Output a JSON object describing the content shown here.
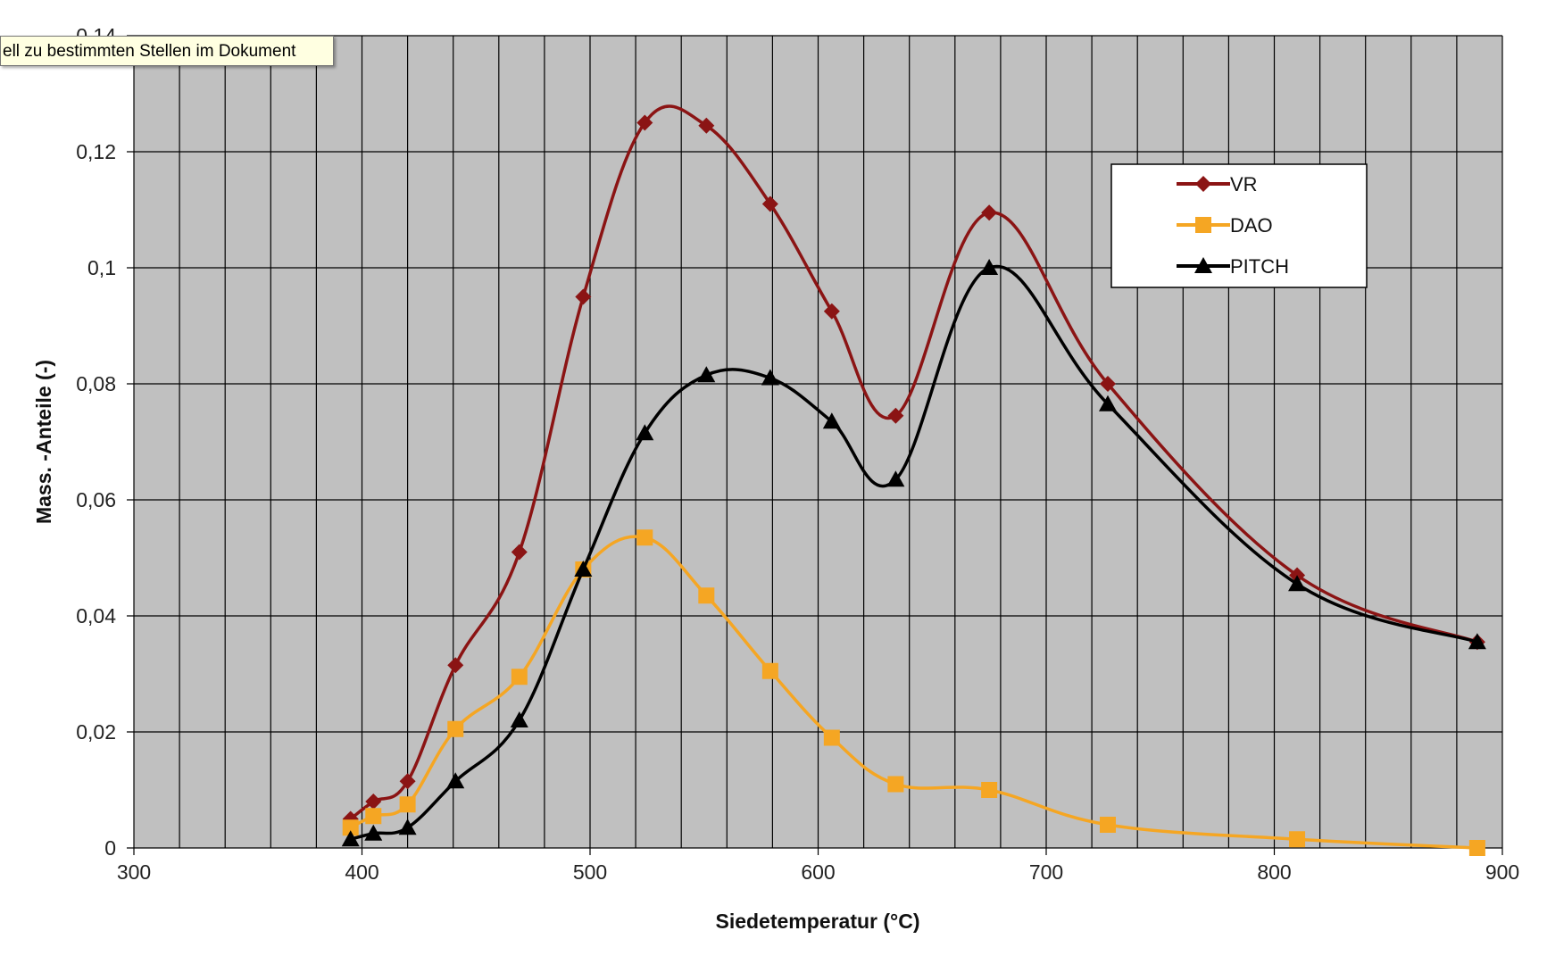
{
  "tooltip": {
    "text": "ell zu bestimmten Stellen im Dokument"
  },
  "chart_data": {
    "type": "line",
    "title": "",
    "xlabel": "Siedetemperatur (°C)",
    "ylabel": "Mass. -Anteile (-)",
    "xlim": [
      300,
      900
    ],
    "ylim": [
      0,
      0.14
    ],
    "x_ticks": [
      300,
      400,
      500,
      600,
      700,
      800,
      900
    ],
    "x_tick_labels": [
      "300",
      "400",
      "500",
      "600",
      "700",
      "800",
      "900"
    ],
    "y_ticks": [
      0,
      0.02,
      0.04,
      0.06,
      0.08,
      0.1,
      0.12,
      0.14
    ],
    "y_tick_labels": [
      "0",
      "0,02",
      "0,04",
      "0,06",
      "0,08",
      "0,1",
      "0,12",
      "0,14"
    ],
    "grid": true,
    "plot_background": "#c0c0c0",
    "legend_position": "top-right",
    "x": [
      395,
      405,
      420,
      441,
      469,
      497,
      524,
      551,
      579,
      606,
      634,
      675,
      727,
      810,
      889
    ],
    "series": [
      {
        "name": "VR",
        "color": "#8b1414",
        "marker": "diamond",
        "values": [
          0.005,
          0.008,
          0.0115,
          0.0315,
          0.051,
          0.095,
          0.125,
          0.1245,
          0.111,
          0.0925,
          0.0745,
          0.1095,
          0.08,
          0.047,
          0.0355
        ]
      },
      {
        "name": "DAO",
        "color": "#f5a623",
        "marker": "square",
        "values": [
          0.0035,
          0.0055,
          0.0075,
          0.0205,
          0.0295,
          0.048,
          0.0535,
          0.0435,
          0.0305,
          0.019,
          0.011,
          0.01,
          0.004,
          0.0015,
          0.0
        ]
      },
      {
        "name": "PITCH",
        "color": "#000000",
        "marker": "triangle",
        "values": [
          0.0015,
          0.0025,
          0.0035,
          0.0115,
          0.022,
          0.048,
          0.0715,
          0.0815,
          0.081,
          0.0735,
          0.0635,
          0.1,
          0.0765,
          0.0455,
          0.0355
        ]
      }
    ]
  }
}
